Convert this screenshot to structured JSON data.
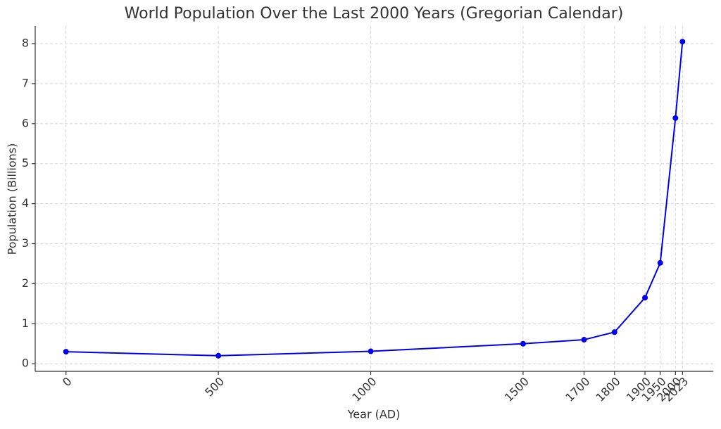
{
  "chart_data": {
    "type": "line",
    "title": "World Population Over the Last 2000 Years (Gregorian Calendar)",
    "x_label": "Year (AD)",
    "y_label": "Population (Billions)",
    "x": [
      0,
      500,
      1000,
      1500,
      1700,
      1800,
      1900,
      1950,
      2000,
      2023
    ],
    "series": [
      {
        "color": "#0000ee",
        "values": [
          0.3,
          0.2,
          0.31,
          0.5,
          0.6,
          0.79,
          1.65,
          2.52,
          6.14,
          8.05
        ]
      }
    ],
    "xlim": [
      -101,
      2124
    ],
    "ylim": [
      -0.19,
      8.44
    ],
    "xticks": [
      0,
      500,
      1000,
      1500,
      1700,
      1800,
      1900,
      1950,
      2000,
      2023
    ],
    "yticks": [
      0,
      1,
      2,
      3,
      4,
      5,
      6,
      7,
      8
    ],
    "grid": true
  }
}
